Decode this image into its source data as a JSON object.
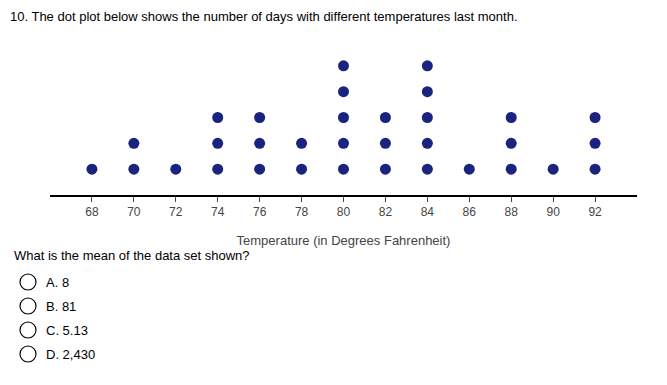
{
  "chart_data": {
    "type": "dot",
    "title": "10. The dot plot below shows the number of days with different temperatures last month.",
    "x": [
      68,
      70,
      72,
      74,
      76,
      78,
      80,
      82,
      84,
      86,
      88,
      90,
      92
    ],
    "values": [
      1,
      2,
      1,
      3,
      3,
      2,
      5,
      3,
      5,
      1,
      3,
      1,
      3
    ],
    "color": "#1a237e",
    "xlabel": "Temperature (in Degrees Fahrenheit)",
    "xlim": [
      66,
      94
    ],
    "xticks": [
      68,
      70,
      72,
      74,
      76,
      78,
      80,
      82,
      84,
      86,
      88,
      90,
      92
    ],
    "ylim": [
      0,
      6
    ],
    "tick_labels": "x",
    "grid": false,
    "annotations": [
      "What is the mean of the data set shown?",
      "A. 8",
      "B. 81",
      "C. 5.13",
      "D. 2,430"
    ]
  }
}
